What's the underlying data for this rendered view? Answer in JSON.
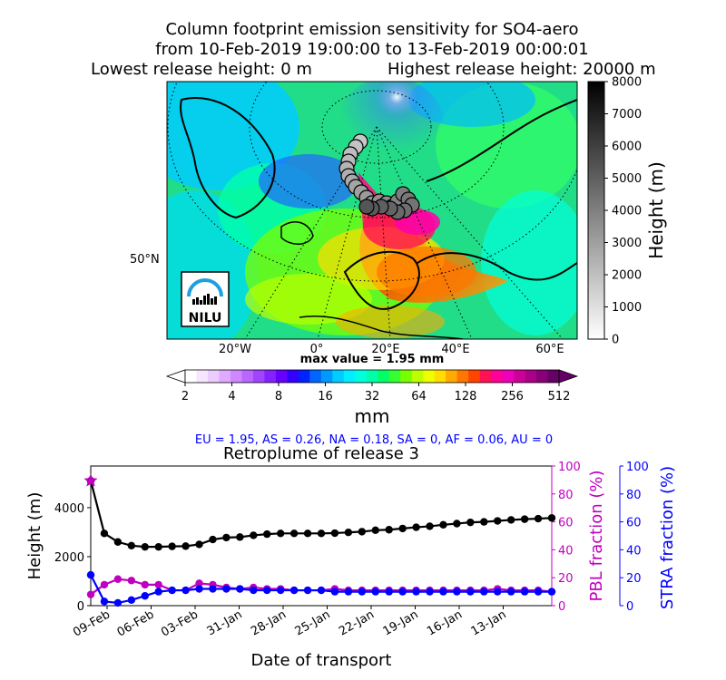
{
  "title": {
    "line1": "Column footprint emission sensitivity for SO4-aero",
    "line2": "from 10-Feb-2019 19:00:00 to 13-Feb-2019 00:00:01",
    "line3a": "Lowest release height: 0 m",
    "line3b": "Highest release height: 20000 m"
  },
  "map": {
    "lon_labels": [
      "20°W",
      "0°",
      "20°E",
      "40°E",
      "60°E"
    ],
    "lat_label": "50°N",
    "logo_text": "NILU",
    "max_value_text": "max value = 1.95 mm"
  },
  "height_colorbar": {
    "label": "Height (m)",
    "ticks": [
      "0",
      "1000",
      "2000",
      "3000",
      "4000",
      "5000",
      "6000",
      "7000",
      "8000"
    ]
  },
  "sensitivity_colorbar": {
    "unit": "mm",
    "ticks": [
      "2",
      "4",
      "8",
      "16",
      "32",
      "64",
      "128",
      "256",
      "512"
    ],
    "colors": [
      "#ffffff",
      "#f7e6ff",
      "#ecccff",
      "#dfaaff",
      "#cf88ff",
      "#bb66ff",
      "#a044ff",
      "#8422ff",
      "#6600ff",
      "#3300ff",
      "#0022ff",
      "#0066ff",
      "#0099ff",
      "#00ccff",
      "#00eeff",
      "#00ffdd",
      "#00ffaa",
      "#00ff66",
      "#33ff33",
      "#77ff00",
      "#bbff00",
      "#eeff00",
      "#ffdd00",
      "#ffaa00",
      "#ff7700",
      "#ff4400",
      "#ff1155",
      "#ff0099",
      "#ee00bb",
      "#cc0099",
      "#aa0088",
      "#880077",
      "#660066"
    ]
  },
  "region_summary": "EU = 1.95,  AS = 0.26,  NA = 0.18,  SA = 0,  AF = 0.06,  AU = 0",
  "chart_data": {
    "type": "line",
    "title": "Retroplume of release 3",
    "xlabel": "Date of transport",
    "ylabel_left": "Height (m)",
    "ylabel_right1": "PBL fraction (%)",
    "ylabel_right2": "STRA fraction (%)",
    "x_tick_labels": [
      "09-Feb",
      "06-Feb",
      "03-Feb",
      "31-Jan",
      "28-Jan",
      "25-Jan",
      "22-Jan",
      "19-Jan",
      "16-Jan",
      "13-Jan"
    ],
    "y_left_ticks": [
      "0",
      "2000",
      "4000"
    ],
    "y_right_ticks": [
      "0",
      "20",
      "40",
      "60",
      "80",
      "100"
    ],
    "ylim_left": [
      0,
      5700
    ],
    "ylim_right": [
      0,
      100
    ],
    "x_index": [
      0,
      1,
      2,
      3,
      4,
      5,
      6,
      7,
      8,
      9,
      10,
      11,
      12,
      13,
      14,
      15,
      16,
      17,
      18,
      19,
      20,
      21,
      22,
      23,
      24,
      25,
      26,
      27,
      28,
      29,
      30,
      31,
      32,
      33,
      34
    ],
    "series": [
      {
        "name": "Height (m)",
        "axis": "left",
        "color": "#000000",
        "values": [
          5100,
          2950,
          2600,
          2450,
          2400,
          2400,
          2420,
          2430,
          2500,
          2700,
          2780,
          2800,
          2870,
          2920,
          2950,
          2950,
          2950,
          2950,
          2960,
          2990,
          3020,
          3080,
          3100,
          3150,
          3200,
          3240,
          3300,
          3350,
          3400,
          3420,
          3460,
          3500,
          3530,
          3550,
          3580
        ]
      },
      {
        "name": "PBL fraction (%)",
        "axis": "right",
        "color": "#c000c0",
        "values": [
          8,
          15,
          19,
          18,
          15,
          15,
          11,
          11,
          16,
          15,
          13,
          12,
          13,
          12,
          12,
          11,
          11,
          11,
          12,
          11,
          11,
          11,
          11,
          11,
          11,
          11,
          11,
          11,
          11,
          11,
          12,
          11,
          11,
          11,
          10
        ]
      },
      {
        "name": "STRA fraction (%)",
        "axis": "right2",
        "color": "#0000ff",
        "values": [
          22,
          3,
          2,
          4,
          7,
          10,
          11,
          11,
          12,
          12,
          12,
          12,
          11,
          11,
          11,
          11,
          11,
          11,
          10,
          10,
          10,
          10,
          10,
          10,
          10,
          10,
          10,
          10,
          10,
          10,
          10,
          10,
          10,
          10,
          10
        ]
      }
    ],
    "start_marker": {
      "value": 5100,
      "color": "#c000c0",
      "shape": "star"
    }
  },
  "colors": {
    "height_line": "#000000",
    "pbl": "#c000c0",
    "stra": "#0000ff",
    "summary_text": "#0000ff",
    "axis": "#000000"
  }
}
